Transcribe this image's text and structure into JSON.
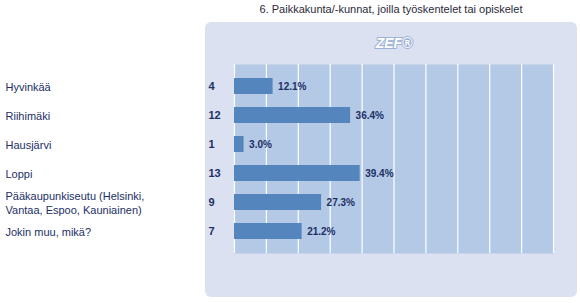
{
  "chart_data": {
    "type": "bar",
    "orientation": "horizontal",
    "title": "6. Paikkakunta/-kunnat, joilla työskentelet tai opiskelet",
    "annotations": [
      "ZEF®"
    ],
    "categories": [
      "Hyvinkää",
      "Riihimäki",
      "Hausjärvi",
      "Loppi",
      "Pääkaupunkiseutu (Helsinki, Vantaa, Espoo, Kauniainen)",
      "Jokin muu, mikä?"
    ],
    "counts": [
      4,
      12,
      1,
      13,
      9,
      7
    ],
    "values": [
      12.1,
      36.4,
      3.0,
      39.4,
      27.3,
      21.2
    ],
    "value_labels": [
      "12.1%",
      "36.4%",
      "3.0%",
      "39.4%",
      "27.3%",
      "21.2%"
    ],
    "data_labels": true,
    "color": "#5585bd",
    "xlim": [
      0,
      100
    ],
    "xticks": [
      0,
      10,
      20,
      30,
      40,
      50,
      60,
      70,
      80,
      90,
      100
    ],
    "grid": true,
    "tick_labels": false
  }
}
